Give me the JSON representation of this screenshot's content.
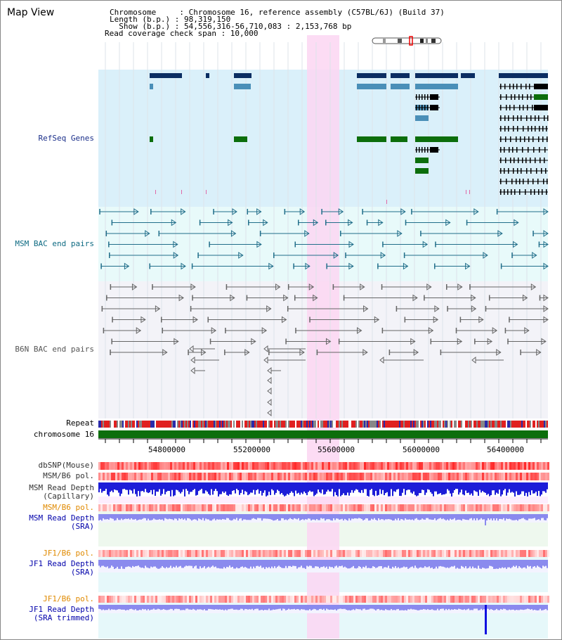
{
  "view_title": "Map View",
  "info": {
    "line1": "Chromosome     : Chromosome 16, reference assembly (C57BL/6J) (Build 37)",
    "line2": "Length (b.p.) : 98,319,150",
    "line3": "  Show (b.p.) : 54,556,316-56,710,083 : 2,153,768 bp",
    "line4": "Read coverage check span : 10,000"
  },
  "tracks": {
    "refseq": "RefSeq Genes",
    "msm_bac": "MSM BAC end pairs",
    "b6n_bac": "B6N BAC end pairs",
    "repeat": "Repeat",
    "chrom": "chromosome 16",
    "dbsnp": "dbSNP(Mouse)",
    "msm_b6_pol_1": "MSM/B6 pol.",
    "msm_depth_cap_1": "MSM Read Depth",
    "msm_depth_cap_2": "(Capillary)",
    "msm_b6_pol_2": "MSM/B6 pol.",
    "msm_depth_sra_1": "MSM Read Depth",
    "msm_depth_sra_2": "(SRA)",
    "jf1_b6_pol_1": "JF1/B6 pol.",
    "jf1_depth_sra_1": "JF1 Read Depth",
    "jf1_depth_sra_2": "(SRA)",
    "jf1_b6_pol_2": "JF1/B6 pol.",
    "jf1_depth_trim_1": "JF1 Read Depth",
    "jf1_depth_trim_2": "(SRA trimmed)"
  },
  "axis": {
    "ticks": [
      "54800000",
      "55200000",
      "55600000",
      "56000000",
      "56400000"
    ]
  },
  "colors": {
    "refseq_bg": "#daf0fa",
    "msm_bg": "#e8fafa",
    "b6n_bg": "#f3f3f8",
    "highlight": "#fbd6f2",
    "refseq_dark": "#0b2d62",
    "refseq_mid": "#4a8fb8",
    "refseq_green": "#0c6e0c",
    "msm_line": "#216e8a",
    "b6n_line": "#666666",
    "chrom": "#0c6e0c",
    "depth_blue": "#1d1dd8",
    "depth_light": "#8a8aee",
    "pink_label": "#e08a00",
    "blue_label": "#0000aa"
  }
}
